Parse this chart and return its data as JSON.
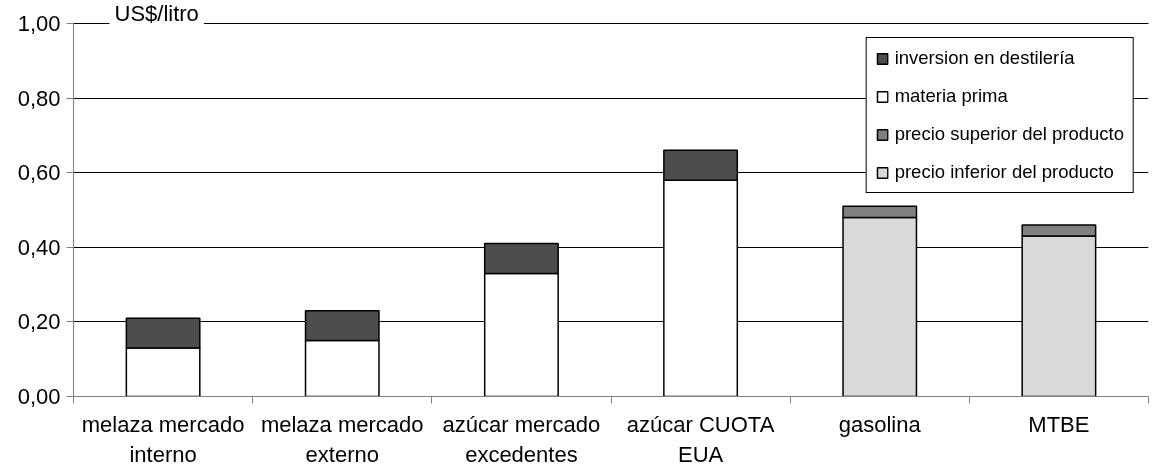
{
  "chart_data": {
    "type": "bar",
    "stacked": true,
    "ylabel": "US$/litro",
    "categories": [
      "melaza mercado interno",
      "melaza mercado externo",
      "azúcar mercado excedentes",
      "azúcar CUOTA EUA",
      "gasolina",
      "MTBE"
    ],
    "series": [
      {
        "name": "precio inferior del producto",
        "color": "#d9d9d9",
        "values": [
          null,
          null,
          null,
          null,
          0.48,
          0.43
        ]
      },
      {
        "name": "precio superior del producto",
        "color": "#808080",
        "values": [
          null,
          null,
          null,
          null,
          0.03,
          0.03
        ]
      },
      {
        "name": "materia prima",
        "color": "#ffffff",
        "values": [
          0.13,
          0.15,
          0.33,
          0.58,
          null,
          null
        ]
      },
      {
        "name": "inversion en destilería",
        "color": "#4d4d4d",
        "values": [
          0.08,
          0.08,
          0.08,
          0.08,
          null,
          null
        ]
      }
    ],
    "ylim": [
      0,
      1
    ],
    "yticks": [
      {
        "value": 0,
        "label": "0,00"
      },
      {
        "value": 0.2,
        "label": "0,20"
      },
      {
        "value": 0.4,
        "label": "0,40"
      },
      {
        "value": 0.6,
        "label": "0,60"
      },
      {
        "value": 0.8,
        "label": "0,80"
      },
      {
        "value": 1,
        "label": "1,00"
      }
    ],
    "grid": "y",
    "legend": "top right"
  }
}
